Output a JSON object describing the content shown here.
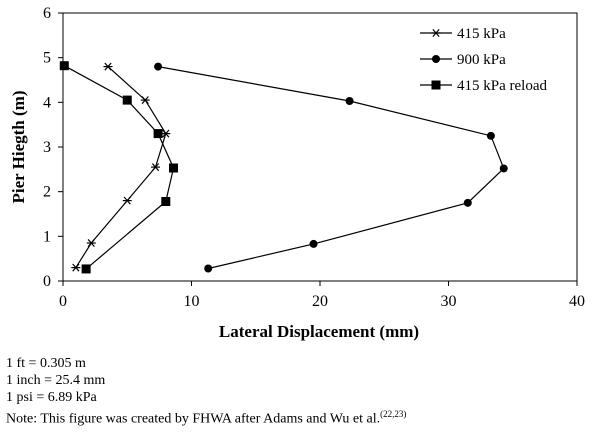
{
  "chart_data": {
    "type": "line",
    "xlabel": "Lateral Displacement (mm)",
    "ylabel": "Pier Hiegth (m)",
    "xlim": [
      0,
      40
    ],
    "ylim": [
      0,
      6
    ],
    "xticks": [
      0,
      10,
      20,
      30,
      40
    ],
    "yticks": [
      0,
      1,
      2,
      3,
      4,
      5,
      6
    ],
    "grid": false,
    "legend_position": "top-right",
    "series": [
      {
        "name": "415 kPa",
        "marker": "star",
        "points": [
          {
            "x": 3.5,
            "y": 4.8
          },
          {
            "x": 6.4,
            "y": 4.05
          },
          {
            "x": 8.0,
            "y": 3.3
          },
          {
            "x": 7.2,
            "y": 2.55
          },
          {
            "x": 5.0,
            "y": 1.8
          },
          {
            "x": 2.2,
            "y": 0.85
          },
          {
            "x": 1.0,
            "y": 0.3
          }
        ]
      },
      {
        "name": "900 kPa",
        "marker": "circle",
        "points": [
          {
            "x": 7.4,
            "y": 4.8
          },
          {
            "x": 22.3,
            "y": 4.03
          },
          {
            "x": 33.3,
            "y": 3.25
          },
          {
            "x": 34.3,
            "y": 2.52
          },
          {
            "x": 31.5,
            "y": 1.75
          },
          {
            "x": 19.5,
            "y": 0.83
          },
          {
            "x": 11.3,
            "y": 0.28
          }
        ]
      },
      {
        "name": "415 kPa reload",
        "marker": "square",
        "points": [
          {
            "x": 0.1,
            "y": 4.82
          },
          {
            "x": 5.0,
            "y": 4.05
          },
          {
            "x": 7.4,
            "y": 3.3
          },
          {
            "x": 8.6,
            "y": 2.53
          },
          {
            "x": 8.0,
            "y": 1.78
          },
          {
            "x": 1.8,
            "y": 0.27
          }
        ]
      }
    ]
  },
  "notes": {
    "conversion_ft": "1 ft = 0.305 m",
    "conversion_inch": "1 inch = 25.4 mm",
    "conversion_psi": "1 psi = 6.89 kPa",
    "source_note": "Note: This figure was created by FHWA after Adams and Wu et al.",
    "source_refs": "(22,23)"
  }
}
